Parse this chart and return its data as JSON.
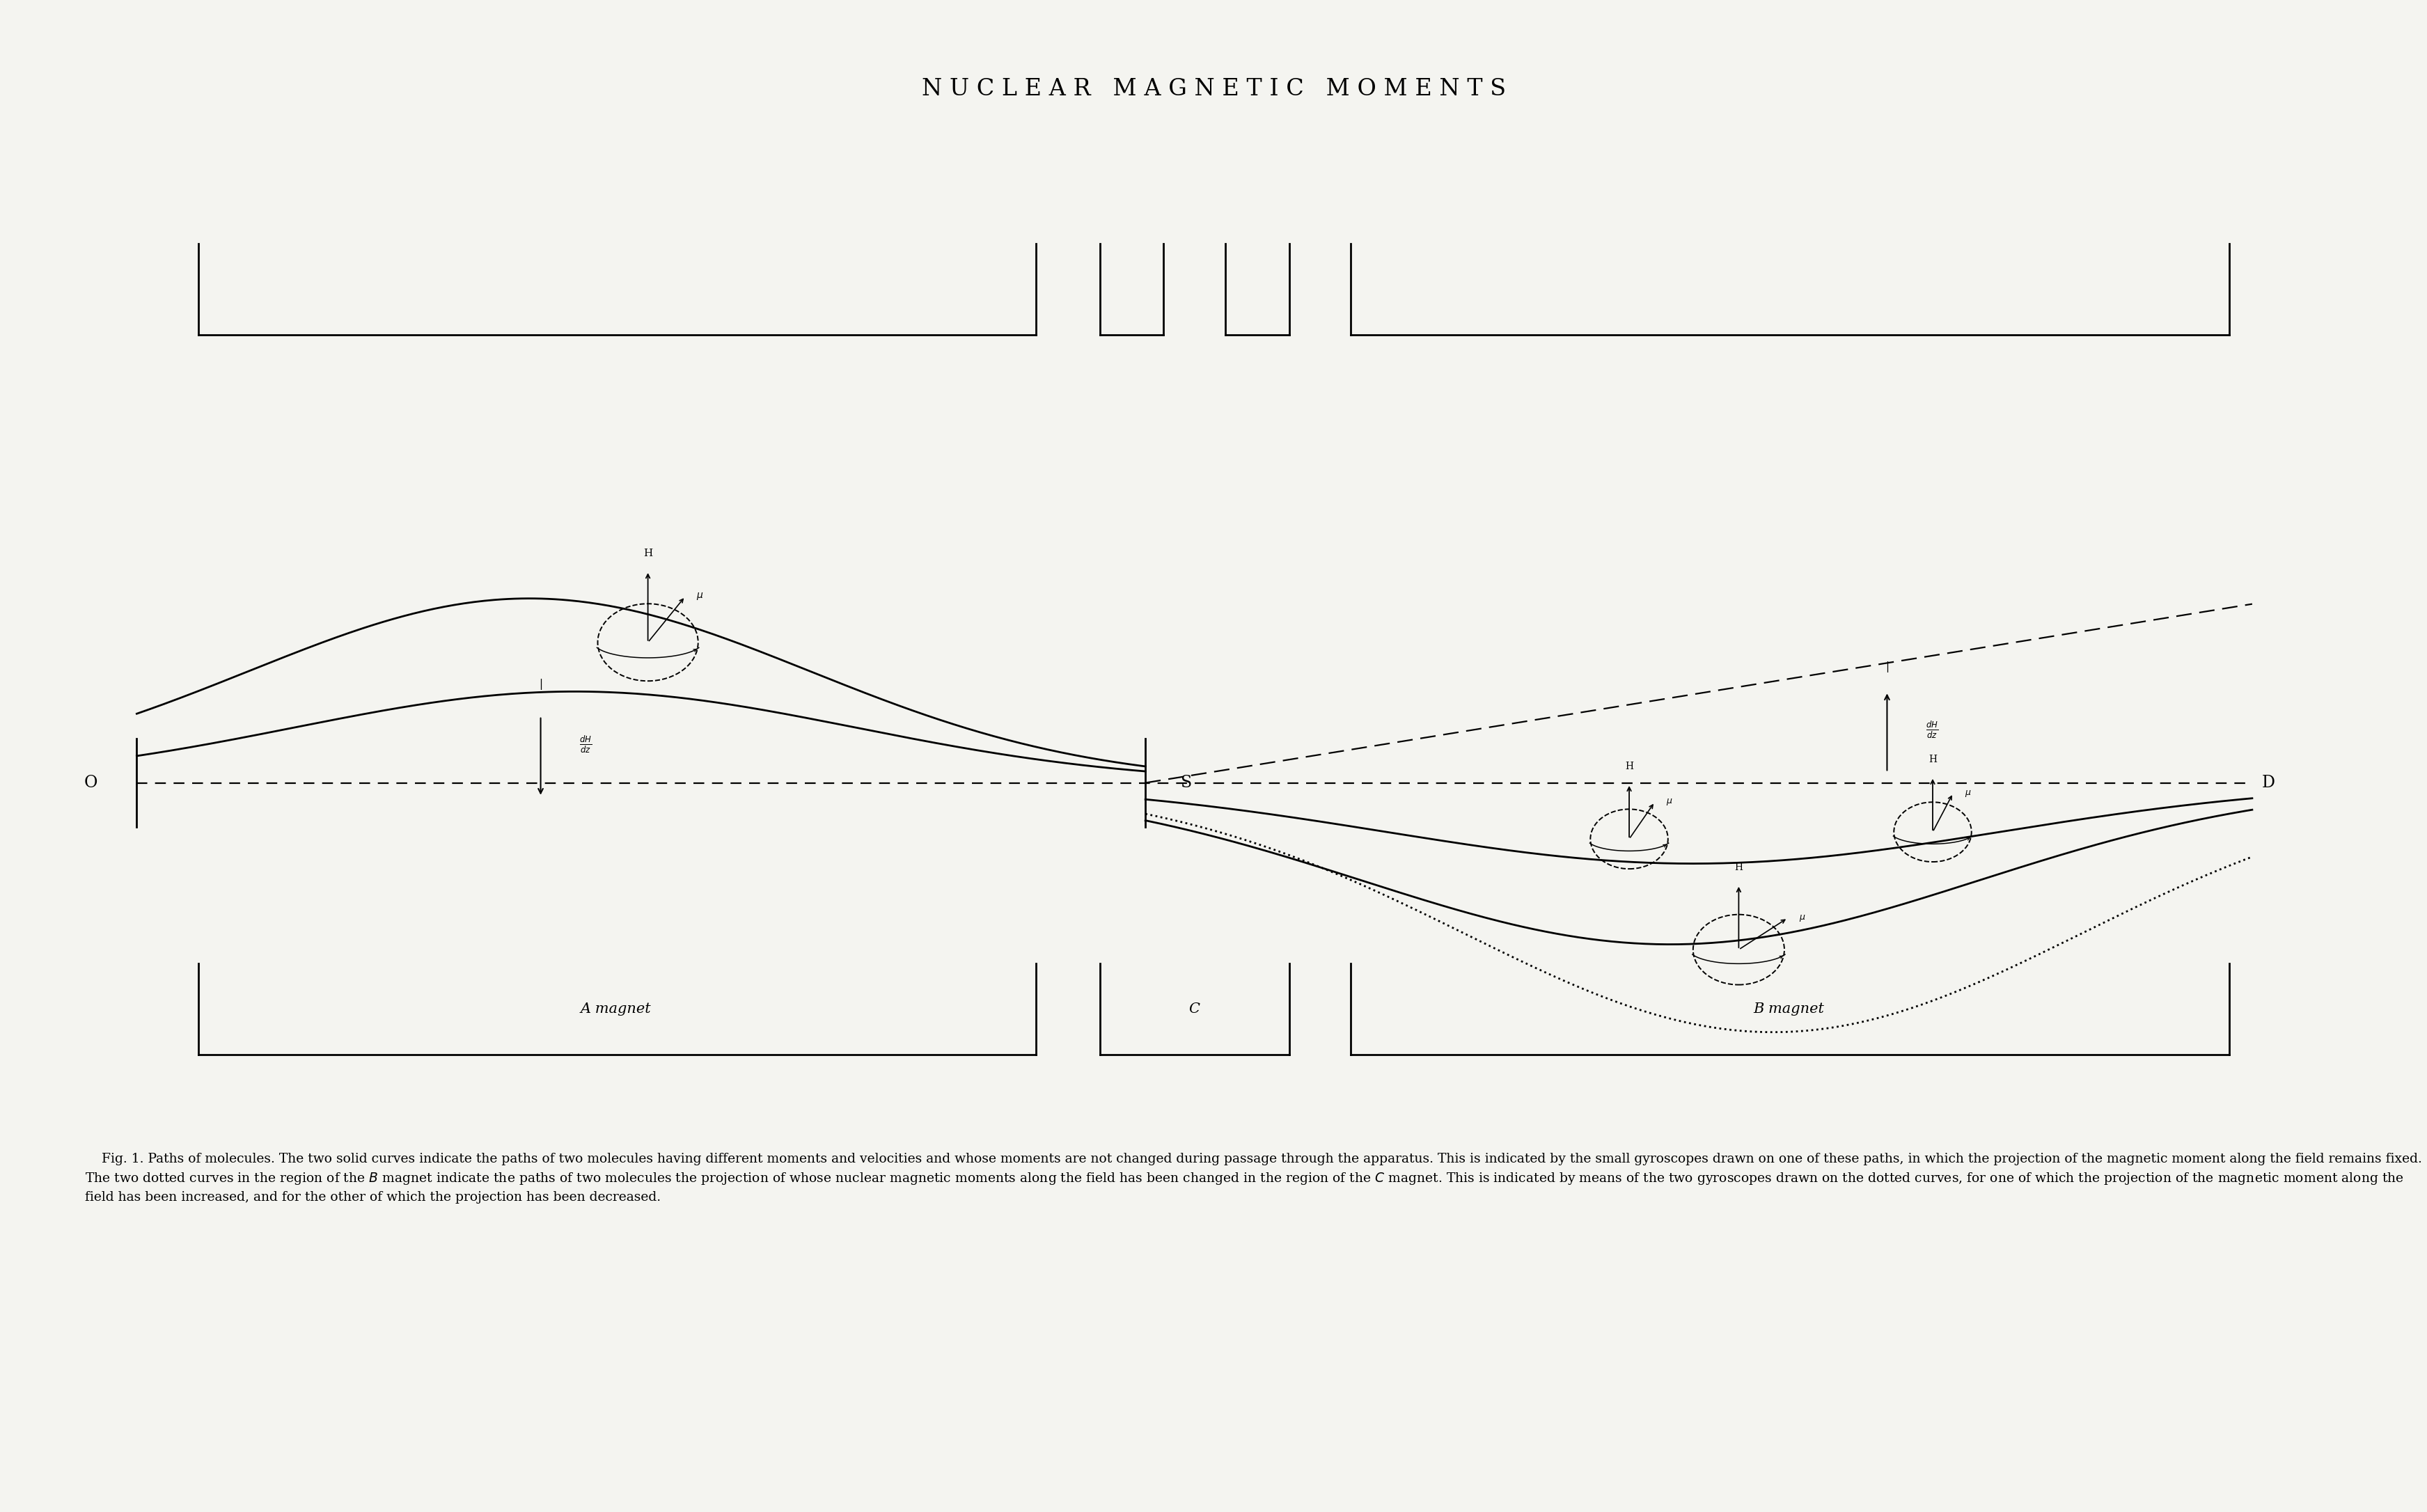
{
  "title": "N U C L E A R   M A G N E T I C   M O M E N T S",
  "bg_color": "#f4f4f0",
  "text_color": "#000000",
  "title_fontsize": 24,
  "caption_fontsize": 13.5,
  "fig_width": 34.87,
  "fig_height": 21.72,
  "caption_line1": "    Fig. 1. Paths of molecules. The two solid curves indicate the paths of two molecules having different moments and velocities and whose moments are not changed during passage through the apparatus.",
  "caption_line2": "This is indicated by the small gyroscopes drawn on one of these paths, in which the projection of the magnetic moment along the field remains fixed. The two dotted curves in the region of the B magnet",
  "caption_line3": "indicate the paths of two molecules the projection of whose nuclear magnetic moments along the field has been changed in the region of the C magnet. This is indicated by means of the two gyroscopes drawn",
  "caption_line4": "on the dotted curves, for one of which the projection of the magnetic moment along the field has been increased, and for the other of which the projection has been decreased."
}
